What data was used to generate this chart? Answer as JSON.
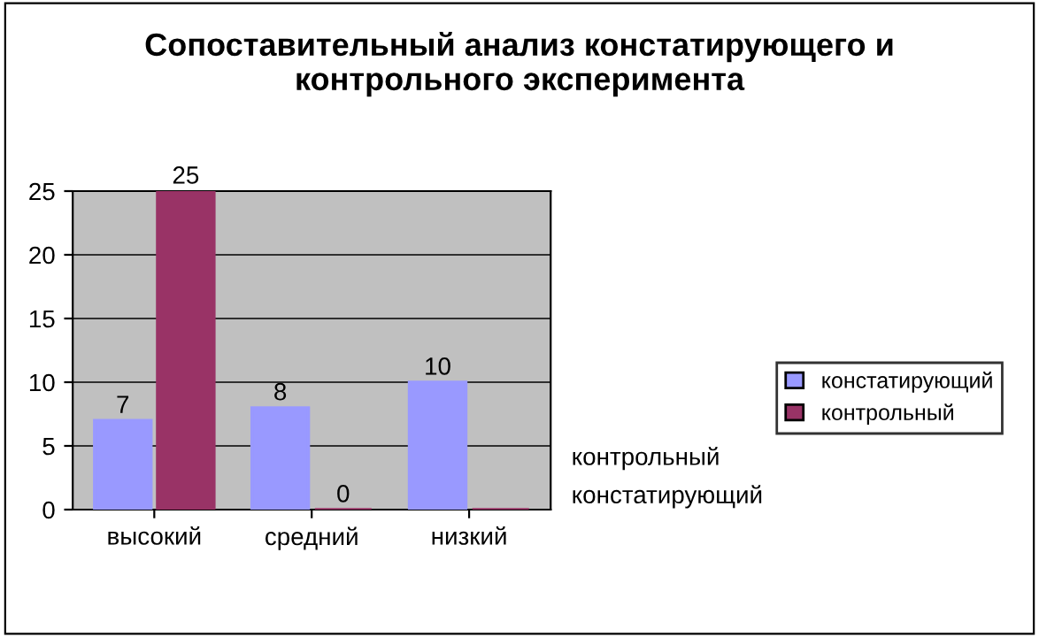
{
  "chart_data": {
    "type": "bar",
    "title": "Сопоставительный анализ констатирующего и\nконтрольного эксперимента",
    "categories": [
      "высокий",
      "средний",
      "низкий"
    ],
    "series": [
      {
        "name": "констатирующий",
        "color": "#9999ff",
        "values": [
          7,
          8,
          10
        ],
        "value_labels": [
          "7",
          "8",
          "10"
        ]
      },
      {
        "name": "контрольный",
        "color": "#993366",
        "values": [
          25,
          0,
          0
        ],
        "value_labels": [
          "25",
          "0",
          null
        ]
      }
    ],
    "ylim": [
      0,
      25
    ],
    "yticks": [
      0,
      5,
      10,
      15,
      20,
      25
    ],
    "grid": "y",
    "legend": "right",
    "annotations": [
      "контрольный",
      "констатирующий"
    ]
  }
}
